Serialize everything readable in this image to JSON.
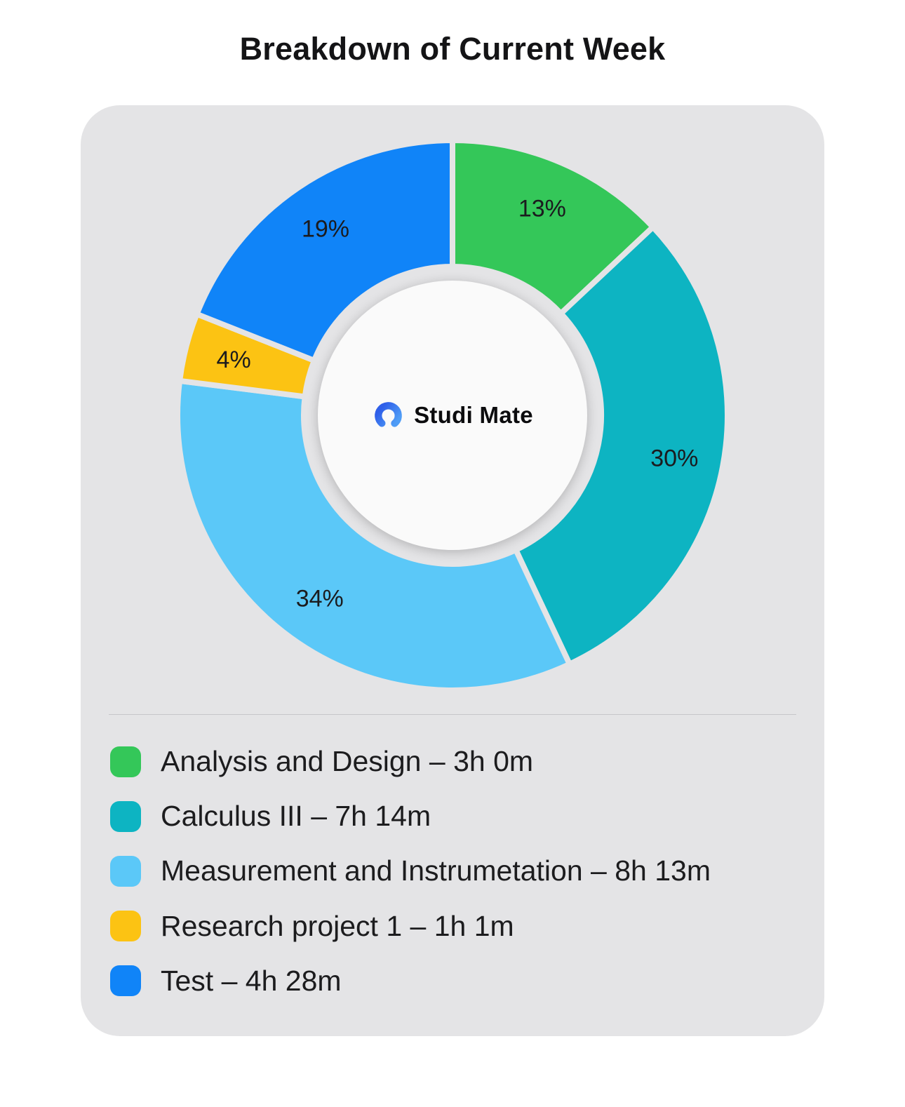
{
  "page": {
    "title": "Breakdown of Current Week"
  },
  "brand": {
    "name": "Studi Mate",
    "logo_color_top": "#4f9df6",
    "logo_color_bottom": "#2f5fe9"
  },
  "chart_data": {
    "type": "pie",
    "variant": "donut",
    "title": "Breakdown of Current Week",
    "start_angle_deg": 0,
    "direction": "clockwise",
    "center_label": "Studi Mate",
    "legend_position": "bottom",
    "legend_separator": "–",
    "gap_color": "#e4e4e6",
    "series": [
      {
        "label": "Analysis and Design",
        "duration": "3h 0m",
        "percent": 13,
        "color": "#34c759"
      },
      {
        "label": "Calculus III",
        "duration": "7h 14m",
        "percent": 30,
        "color": "#0db4c2"
      },
      {
        "label": "Measurement and Instrumetation",
        "duration": "8h 13m",
        "percent": 34,
        "color": "#5bc8f8"
      },
      {
        "label": "Research project 1",
        "duration": "1h 1m",
        "percent": 4,
        "color": "#fcc313"
      },
      {
        "label": "Test",
        "duration": "4h 28m",
        "percent": 19,
        "color": "#1084f8"
      }
    ]
  }
}
